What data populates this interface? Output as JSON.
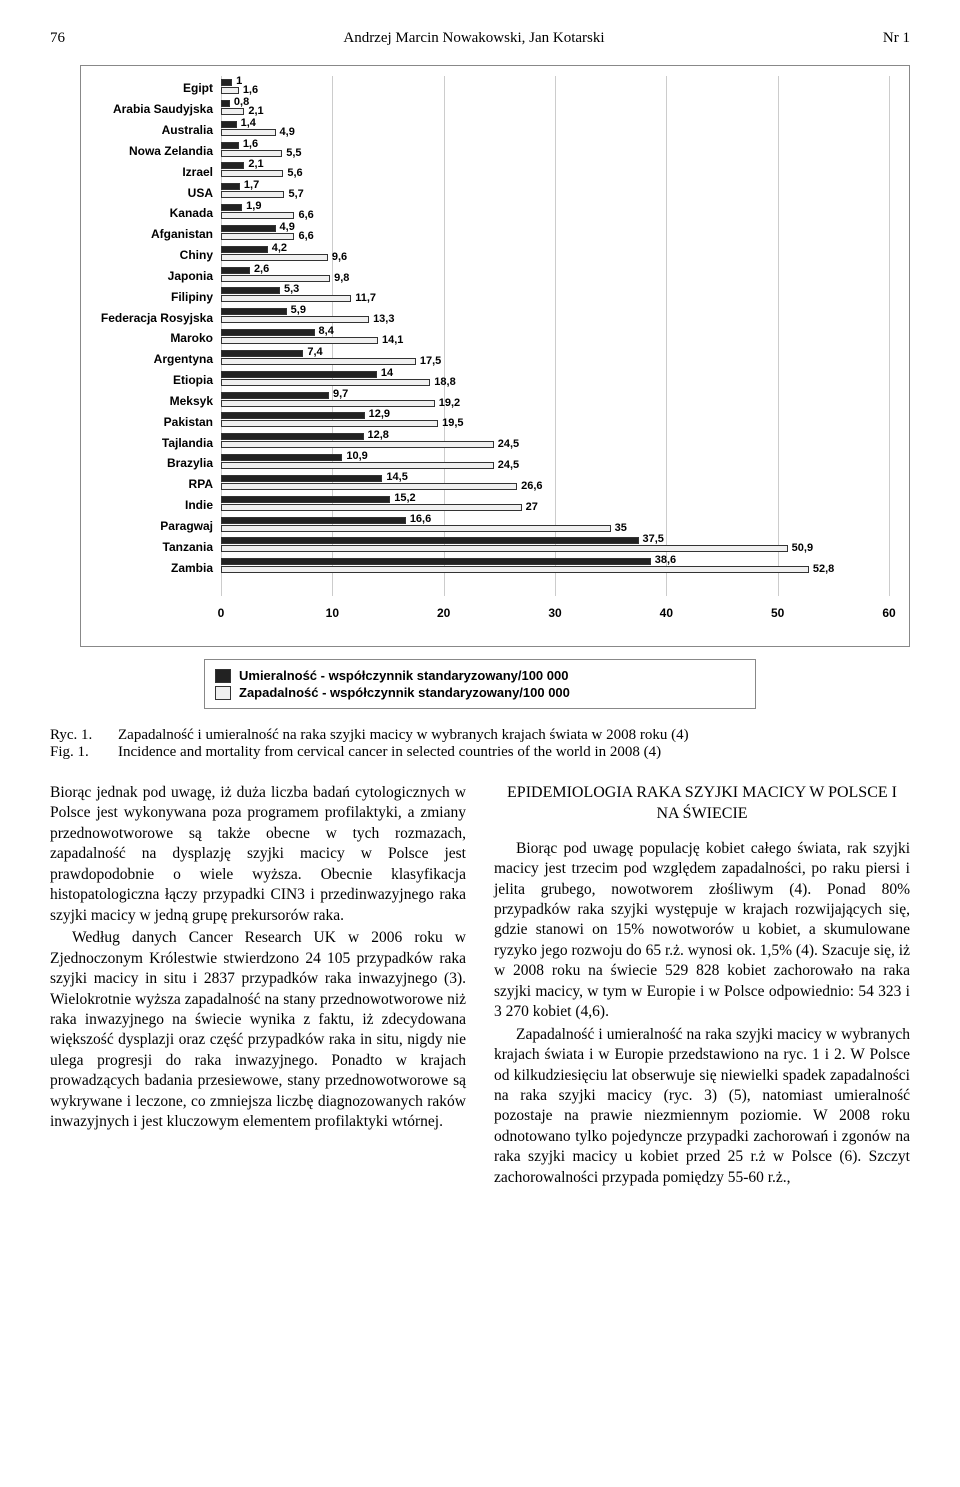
{
  "header": {
    "page_left": "76",
    "authors": "Andrzej Marcin Nowakowski, Jan Kotarski",
    "page_right": "Nr 1"
  },
  "chart": {
    "type": "bar",
    "x_max": 60,
    "x_ticks": [
      0,
      10,
      20,
      30,
      40,
      50,
      60
    ],
    "grid_color": "#cccccc",
    "series": [
      {
        "name": "mortality",
        "color": "#222222",
        "label": "Umieralność - współczynnik standaryzowany/100 000"
      },
      {
        "name": "incidence",
        "color": "#f0f0f0",
        "label": "Zapadalność - współczynnik standaryzowany/100 000"
      }
    ],
    "rows": [
      {
        "country": "Egipt",
        "mortality": "1",
        "incidence": "1,6"
      },
      {
        "country": "Arabia Saudyjska",
        "mortality": "0,8",
        "incidence": "2,1"
      },
      {
        "country": "Australia",
        "mortality": "1,4",
        "incidence": "4,9"
      },
      {
        "country": "Nowa Zelandia",
        "mortality": "1,6",
        "incidence": "5,5"
      },
      {
        "country": "Izrael",
        "mortality": "2,1",
        "incidence": "5,6"
      },
      {
        "country": "USA",
        "mortality": "1,7",
        "incidence": "5,7"
      },
      {
        "country": "Kanada",
        "mortality": "1,9",
        "incidence": "6,6"
      },
      {
        "country": "Afganistan",
        "mortality": "4,9",
        "incidence": "6,6"
      },
      {
        "country": "Chiny",
        "mortality": "4,2",
        "incidence": "9,6"
      },
      {
        "country": "Japonia",
        "mortality": "2,6",
        "incidence": "9,8"
      },
      {
        "country": "Filipiny",
        "mortality": "5,3",
        "incidence": "11,7"
      },
      {
        "country": "Federacja Rosyjska",
        "mortality": "5,9",
        "incidence": "13,3"
      },
      {
        "country": "Maroko",
        "mortality": "8,4",
        "incidence": "14,1"
      },
      {
        "country": "Argentyna",
        "mortality": "7,4",
        "incidence": "17,5"
      },
      {
        "country": "Etiopia",
        "mortality": "14",
        "incidence": "18,8"
      },
      {
        "country": "Meksyk",
        "mortality": "9,7",
        "incidence": "19,2"
      },
      {
        "country": "Pakistan",
        "mortality": "12,9",
        "incidence": "19,5"
      },
      {
        "country": "Tajlandia",
        "mortality": "12,8",
        "incidence": "24,5"
      },
      {
        "country": "Brazylia",
        "mortality": "10,9",
        "incidence": "24,5"
      },
      {
        "country": "RPA",
        "mortality": "14,5",
        "incidence": "26,6"
      },
      {
        "country": "Indie",
        "mortality": "15,2",
        "incidence": "27"
      },
      {
        "country": "Paragwaj",
        "mortality": "16,6",
        "incidence": "35"
      },
      {
        "country": "Tanzania",
        "mortality": "37,5",
        "incidence": "50,9"
      },
      {
        "country": "Zambia",
        "mortality": "38,6",
        "incidence": "52,8"
      }
    ]
  },
  "caption": {
    "ryc_tag": "Ryc. 1.",
    "ryc_text": "Zapadalność i umieralność na raka szyjki macicy w wybranych krajach świata w 2008 roku (4)",
    "fig_tag": "Fig. 1.",
    "fig_text": "Incidence and mortality from cervical cancer in selected countries of the world in 2008 (4)"
  },
  "body": {
    "left": [
      "Biorąc jednak pod uwagę, iż duża liczba badań cytologicznych w Polsce jest wykonywana poza programem profilaktyki, a zmiany przednowotworowe są także obecne w tych rozmazach, zapadalność na dysplazję szyjki macicy w Polsce jest prawdopodobnie o wiele wyższa. Obecnie klasyfikacja histopatologiczna łączy przypadki CIN3 i przedinwazyjnego raka szyjki macicy w jedną grupę prekursorów raka.",
      "Według danych Cancer Research UK w 2006 roku w Zjednoczonym Królestwie stwierdzono 24 105 przypadków raka szyjki macicy in situ i 2837 przypadków raka inwazyjnego (3). Wielokrotnie wyższa zapadalność na stany przednowotworowe niż raka inwazyjnego na świecie wynika z faktu, iż zdecydowana większość dysplazji oraz część przypadków raka in situ, nigdy nie ulega progresji do raka inwazyjnego. Ponadto w krajach prowadzących badania przesiewowe, stany przednowotworowe są wykrywane i leczone, co zmniejsza liczbę diagnozowanych raków inwazyjnych i jest kluczowym elementem profilaktyki wtórnej."
    ],
    "right_heading": "EPIDEMIOLOGIA RAKA SZYJKI MACICY W POLSCE I NA ŚWIECIE",
    "right": [
      "Biorąc pod uwagę populację kobiet całego świata, rak szyjki macicy jest trzecim pod względem zapadalności, po raku piersi i jelita grubego, nowotworem złośliwym (4). Ponad 80% przypadków raka szyjki występuje w krajach rozwijających się, gdzie stanowi on 15% nowotworów u kobiet, a skumulowane ryzyko jego rozwoju do 65 r.ż. wynosi ok. 1,5% (4). Szacuje się, iż w 2008 roku na świecie 529 828 kobiet zachorowało na raka szyjki macicy, w tym w Europie i w Polsce odpowiednio: 54 323 i 3 270 kobiet (4,6).",
      "Zapadalność i umieralność na raka szyjki macicy w wybranych krajach świata i w Europie przedstawiono na ryc. 1 i 2. W Polsce od kilkudziesięciu lat obserwuje się niewielki spadek zapadalności na raka szyjki macicy (ryc. 3) (5), natomiast umieralność pozostaje na prawie niezmiennym poziomie. W 2008 roku odnotowano tylko pojedyncze przypadki zachorowań i zgonów na raka szyjki macicy u kobiet przed 25 r.ż w Polsce (6). Szczyt zachorowalności przypada pomiędzy 55-60 r.ż.,"
    ]
  }
}
